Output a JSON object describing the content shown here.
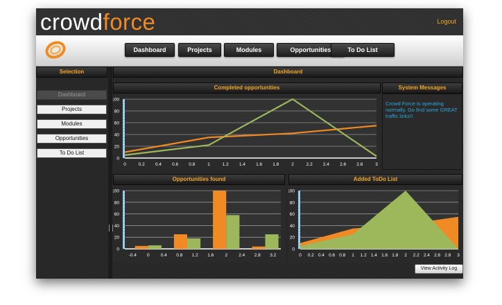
{
  "app": {
    "logo_part1": "crowd",
    "logo_part2": "force",
    "logout": "Logout"
  },
  "nav": {
    "tabs": [
      "Dashboard",
      "Projects",
      "Modules",
      "Opportunities",
      "To Do List"
    ],
    "active": "Dashboard"
  },
  "sidebar": {
    "title": "Selection",
    "items": [
      "Dashboard",
      "Projects",
      "Modules",
      "Opportunities",
      "To Do List"
    ]
  },
  "main": {
    "title": "Dashboard"
  },
  "system_messages": {
    "title": "System Messages",
    "text": "Crowd Force is operating normally. Go find some GREAT traffic links!!"
  },
  "actions": {
    "view_activity_log": "View Activity Log"
  },
  "colors": {
    "orange": "#f08a24",
    "green": "#9cb85a",
    "cyan": "#2aa8e0",
    "accent": "#f5a623"
  },
  "chart_data": [
    {
      "type": "line",
      "title": "Completed opportunities",
      "x_ticks": [
        "0",
        "0.2",
        "0.4",
        "0.6",
        "0.8",
        "1",
        "1.2",
        "1.4",
        "1.6",
        "1.8",
        "2",
        "2.2",
        "2.4",
        "2.6",
        "2.8",
        "3"
      ],
      "y_ticks": [
        "0",
        "20",
        "40",
        "60",
        "80",
        "100"
      ],
      "xlim": [
        0,
        3
      ],
      "ylim": [
        0,
        100
      ],
      "series": [
        {
          "color": "#f08a24",
          "points": [
            [
              0,
              10
            ],
            [
              1,
              35
            ],
            [
              2,
              42
            ],
            [
              3,
              55
            ]
          ]
        },
        {
          "color": "#9cb85a",
          "points": [
            [
              0,
              5
            ],
            [
              1,
              22
            ],
            [
              2,
              100
            ],
            [
              3,
              3
            ]
          ]
        }
      ]
    },
    {
      "type": "bar",
      "title": "Opportunities found",
      "x_ticks": [
        "-0.4",
        "0",
        "0.4",
        "0.8",
        "1.2",
        "1.6",
        "2",
        "2.4",
        "2.8",
        "3.2"
      ],
      "y_ticks": [
        "0",
        "20",
        "40",
        "60",
        "80",
        "100"
      ],
      "xlim": [
        -0.6,
        3.4
      ],
      "ylim": [
        0,
        100
      ],
      "series": [
        {
          "color": "#f08a24",
          "points": [
            [
              0,
              5
            ],
            [
              1,
              25
            ],
            [
              2,
              100
            ],
            [
              3,
              4
            ]
          ]
        },
        {
          "color": "#9cb85a",
          "points": [
            [
              0,
              6
            ],
            [
              1,
              18
            ],
            [
              2,
              58
            ],
            [
              3,
              25
            ]
          ]
        }
      ]
    },
    {
      "type": "area",
      "title": "Added ToDo List",
      "x_ticks": [
        "0",
        "0.2",
        "0.4",
        "0.6",
        "0.8",
        "1",
        "1.2",
        "1.4",
        "1.6",
        "1.8",
        "2",
        "2.2",
        "2.4",
        "2.6",
        "2.8",
        "3"
      ],
      "y_ticks": [
        "0",
        "20",
        "40",
        "60",
        "80",
        "100"
      ],
      "xlim": [
        0,
        3
      ],
      "ylim": [
        0,
        100
      ],
      "series": [
        {
          "color": "#f08a24",
          "points": [
            [
              0,
              10
            ],
            [
              1,
              35
            ],
            [
              2,
              42
            ],
            [
              3,
              55
            ]
          ]
        },
        {
          "color": "#9cb85a",
          "points": [
            [
              0,
              5
            ],
            [
              1,
              25
            ],
            [
              2,
              100
            ],
            [
              3,
              0
            ]
          ]
        }
      ]
    }
  ]
}
